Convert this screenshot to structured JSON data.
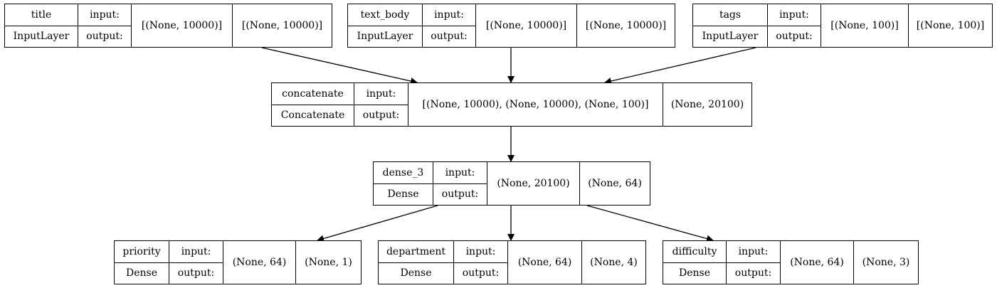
{
  "nodes": [
    {
      "id": "title",
      "name": "title",
      "type": "InputLayer",
      "in_label": "input:",
      "out_label": "output:",
      "input_shape": "[(None, 10000)]",
      "output_shape": "[(None, 10000)]"
    },
    {
      "id": "text_body",
      "name": "text_body",
      "type": "InputLayer",
      "in_label": "input:",
      "out_label": "output:",
      "input_shape": "[(None, 10000)]",
      "output_shape": "[(None, 10000)]"
    },
    {
      "id": "tags",
      "name": "tags",
      "type": "InputLayer",
      "in_label": "input:",
      "out_label": "output:",
      "input_shape": "[(None, 100)]",
      "output_shape": "[(None, 100)]"
    },
    {
      "id": "concatenate",
      "name": "concatenate",
      "type": "Concatenate",
      "in_label": "input:",
      "out_label": "output:",
      "input_shape": "[(None, 10000), (None, 10000), (None, 100)]",
      "output_shape": "(None, 20100)"
    },
    {
      "id": "dense_3",
      "name": "dense_3",
      "type": "Dense",
      "in_label": "input:",
      "out_label": "output:",
      "input_shape": "(None, 20100)",
      "output_shape": "(None, 64)"
    },
    {
      "id": "priority",
      "name": "priority",
      "type": "Dense",
      "in_label": "input:",
      "out_label": "output:",
      "input_shape": "(None, 64)",
      "output_shape": "(None, 1)"
    },
    {
      "id": "department",
      "name": "department",
      "type": "Dense",
      "in_label": "input:",
      "out_label": "output:",
      "input_shape": "(None, 64)",
      "output_shape": "(None, 4)"
    },
    {
      "id": "difficulty",
      "name": "difficulty",
      "type": "Dense",
      "in_label": "input:",
      "out_label": "output:",
      "input_shape": "(None, 64)",
      "output_shape": "(None, 3)"
    }
  ],
  "edges": [
    {
      "from": "title",
      "to": "concatenate"
    },
    {
      "from": "text_body",
      "to": "concatenate"
    },
    {
      "from": "tags",
      "to": "concatenate"
    },
    {
      "from": "concatenate",
      "to": "dense_3"
    },
    {
      "from": "dense_3",
      "to": "priority"
    },
    {
      "from": "dense_3",
      "to": "department"
    },
    {
      "from": "dense_3",
      "to": "difficulty"
    }
  ]
}
